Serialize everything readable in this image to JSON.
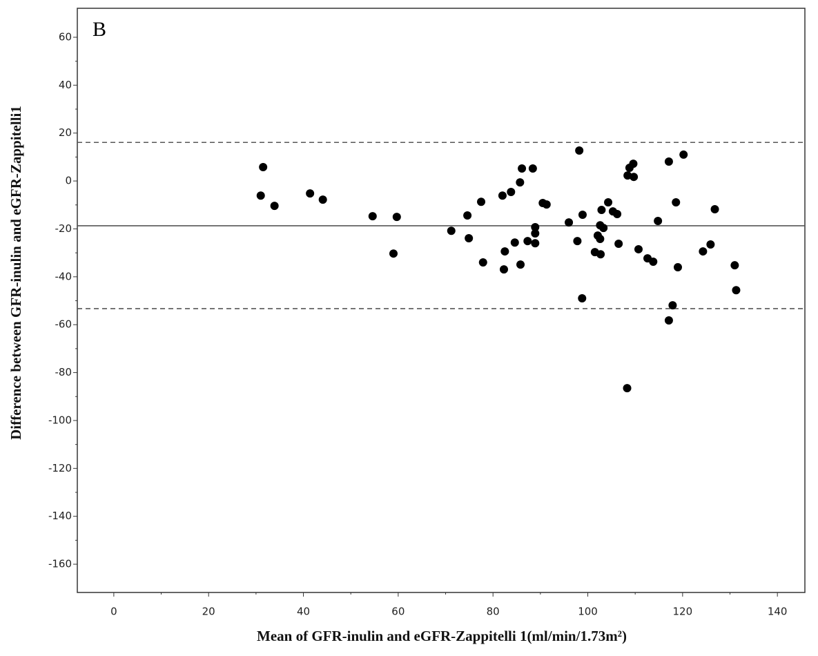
{
  "chart_data": {
    "type": "scatter",
    "panel_label": "B",
    "x_label": "Mean of GFR-inulin and eGFR-Zappitelli 1(ml/min/1.73m²)",
    "y_label": "Difference between GFR-inulin and eGFR-Zappitelli1",
    "x": [
      33.9,
      31.0,
      31.5,
      41.4,
      44.1,
      54.6,
      59.7,
      59.0,
      71.2,
      74.6,
      74.9,
      77.5,
      77.9,
      82.0,
      83.8,
      82.5,
      82.3,
      84.6,
      85.7,
      86.1,
      85.8,
      87.3,
      88.4,
      88.9,
      88.9,
      88.9,
      90.5,
      91.3,
      96.0,
      97.8,
      98.2,
      98.8,
      98.9,
      101.5,
      102.1,
      102.6,
      102.6,
      102.7,
      102.9,
      103.3,
      104.3,
      105.3,
      106.2,
      106.5,
      108.3,
      108.4,
      108.8,
      109.6,
      109.7,
      110.7,
      112.6,
      113.8,
      114.8,
      117.1,
      117.1,
      117.9,
      118.6,
      119.0,
      120.2,
      124.3,
      125.9,
      126.8,
      131.0,
      131.3
    ],
    "values": [
      -10.4,
      -6.1,
      5.8,
      -5.2,
      -7.8,
      -14.7,
      -15.0,
      -30.3,
      -20.8,
      -14.4,
      -23.9,
      -8.7,
      -34.0,
      -6.1,
      -4.6,
      -29.4,
      -36.9,
      -25.7,
      -0.6,
      5.2,
      -34.9,
      -25.1,
      5.2,
      -19.3,
      -21.9,
      -26.0,
      -9.2,
      -9.8,
      -17.3,
      -25.1,
      12.7,
      -49.0,
      -14.1,
      -29.7,
      -22.8,
      -18.5,
      -24.2,
      -30.6,
      -12.1,
      -19.6,
      -8.9,
      -12.7,
      -13.8,
      -26.2,
      -86.5,
      2.3,
      5.5,
      7.2,
      1.7,
      -28.5,
      -32.3,
      -33.7,
      -16.7,
      8.1,
      -58.2,
      -51.9,
      -8.9,
      -36.0,
      11.0,
      -29.4,
      -26.5,
      -11.8,
      -35.2,
      -45.6
    ],
    "color": "#000000",
    "reference_lines": [
      {
        "value": 16.1,
        "style": "dashed"
      },
      {
        "value": -18.7,
        "style": "solid"
      },
      {
        "value": -53.3,
        "style": "dashed"
      }
    ],
    "xlim": [
      -7.7,
      145.8
    ],
    "xticks": [
      0,
      20,
      40,
      60,
      80,
      100,
      120,
      140
    ],
    "ylim": [
      -171.8,
      72.1
    ],
    "yticks": [
      60,
      40,
      20,
      0,
      -20,
      -40,
      -60,
      -80,
      -100,
      -120,
      -140,
      -160
    ]
  }
}
